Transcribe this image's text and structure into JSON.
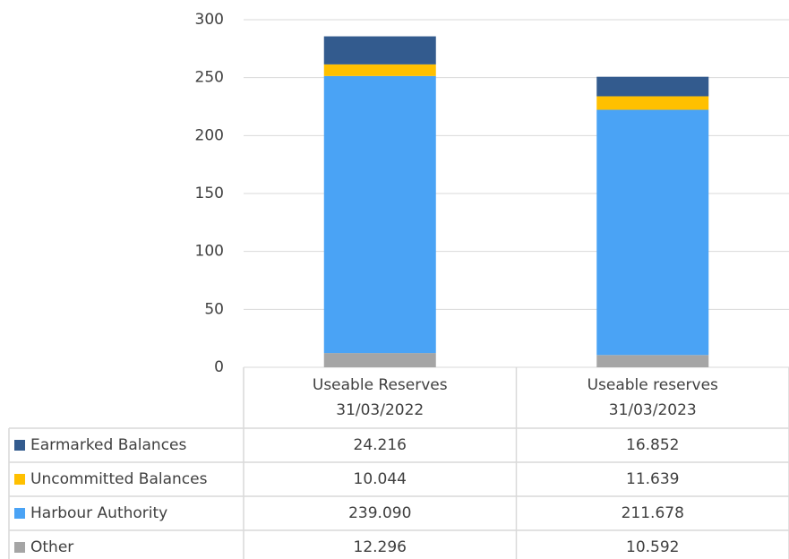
{
  "chart_data": {
    "type": "stacked_bar",
    "categories": [
      "Useable Reserves\n31/03/2022",
      "Useable reserves\n31/03/2023"
    ],
    "series": [
      {
        "name": "Earmarked Balances",
        "color": "#335b8e",
        "values": [
          24.216,
          16.852
        ],
        "value_labels": [
          "24.216",
          "16.852"
        ]
      },
      {
        "name": "Uncommitted Balances",
        "color": "#ffc000",
        "values": [
          10.044,
          11.639
        ],
        "value_labels": [
          "10.044",
          "11.639"
        ]
      },
      {
        "name": "Harbour Authority",
        "color": "#4aa3f5",
        "values": [
          239.09,
          211.678
        ],
        "value_labels": [
          "239.090",
          "211.678"
        ]
      },
      {
        "name": "Other",
        "color": "#a5a5a5",
        "values": [
          12.296,
          10.592
        ],
        "value_labels": [
          "12.296",
          "10.592"
        ]
      }
    ],
    "ylim": [
      0,
      300
    ],
    "yticks": [
      0,
      50,
      100,
      150,
      200,
      250,
      300
    ],
    "grid": true
  }
}
